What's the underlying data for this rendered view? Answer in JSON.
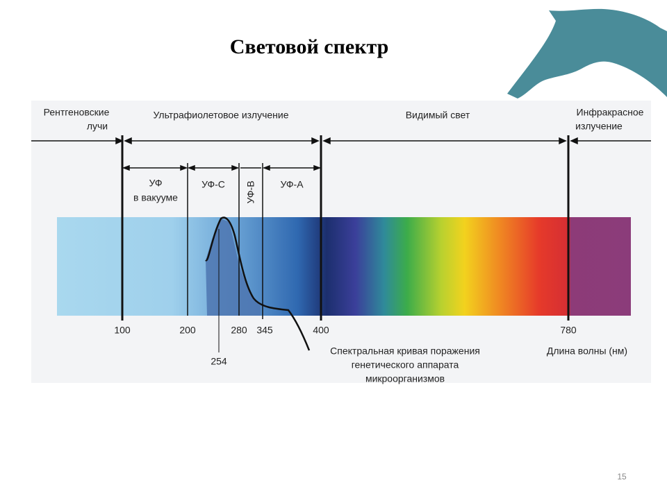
{
  "title": "Световой спектр",
  "regions": [
    {
      "lines": [
        "Рентгеновские",
        "лучи"
      ]
    },
    {
      "lines": [
        "Ультрафиолетовое излучение"
      ]
    },
    {
      "lines": [
        "Видимый свет"
      ]
    },
    {
      "lines": [
        "Инфракрасное",
        "излучение"
      ]
    }
  ],
  "uv_bands": [
    {
      "lines": [
        "УФ",
        "в вакууме"
      ]
    },
    {
      "lines": [
        "УФ-С"
      ]
    },
    {
      "lines": [
        "УФ-В"
      ]
    },
    {
      "lines": [
        "УФ-А"
      ]
    }
  ],
  "wavelength_ticks": [
    100,
    200,
    280,
    345,
    400,
    780
  ],
  "peak_label": 254,
  "curve_caption": [
    "Спектральная кривая поражения",
    "генетического аппарата",
    "микроорганизмов"
  ],
  "axis_label": "Длина волны (нм)",
  "page_number": 15
}
